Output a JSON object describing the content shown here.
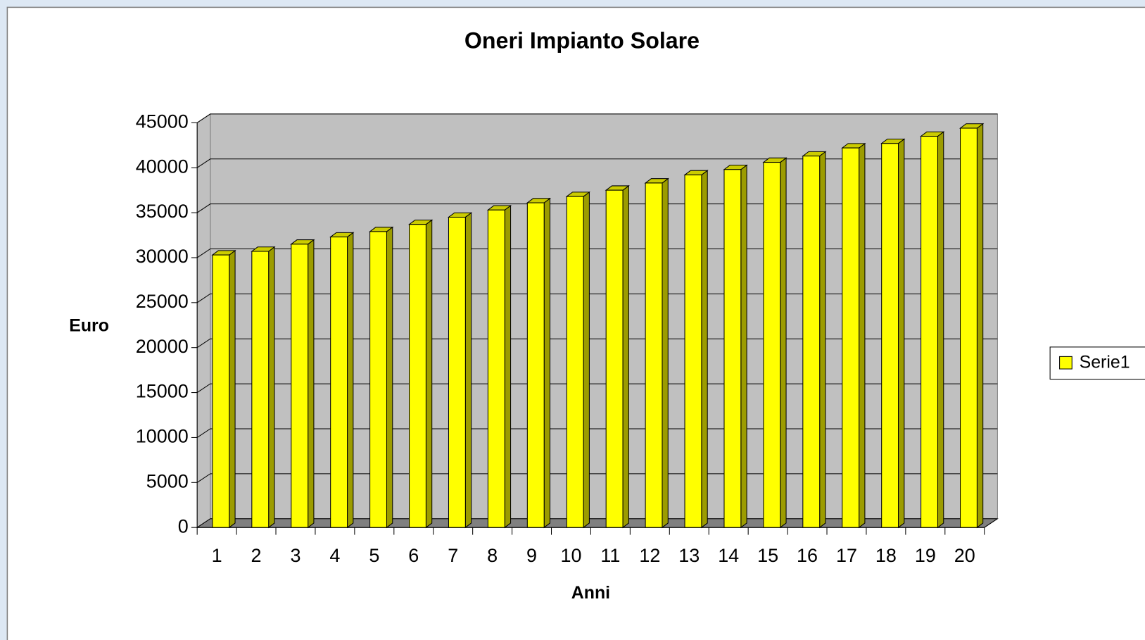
{
  "chart_data": {
    "type": "bar3d",
    "title": "Oneri Impianto Solare",
    "x_label": "Anni",
    "y_label": "Euro",
    "categories": [
      "1",
      "2",
      "3",
      "4",
      "5",
      "6",
      "7",
      "8",
      "9",
      "10",
      "11",
      "12",
      "13",
      "14",
      "15",
      "16",
      "17",
      "18",
      "19",
      "20"
    ],
    "series": [
      {
        "name": "Serie1",
        "color": "#ffff00",
        "values": [
          30300,
          30700,
          31500,
          32300,
          32900,
          33700,
          34500,
          35300,
          36100,
          36800,
          37500,
          38300,
          39200,
          39800,
          40600,
          41300,
          42200,
          42700,
          43500,
          44400
        ]
      }
    ],
    "ylim": [
      0,
      45000
    ],
    "yticks": [
      0,
      5000,
      10000,
      15000,
      20000,
      25000,
      30000,
      35000,
      40000,
      45000
    ],
    "grid": true,
    "legend": "right",
    "wall_color": "#c0c0c0",
    "floor_color": "#808080"
  }
}
